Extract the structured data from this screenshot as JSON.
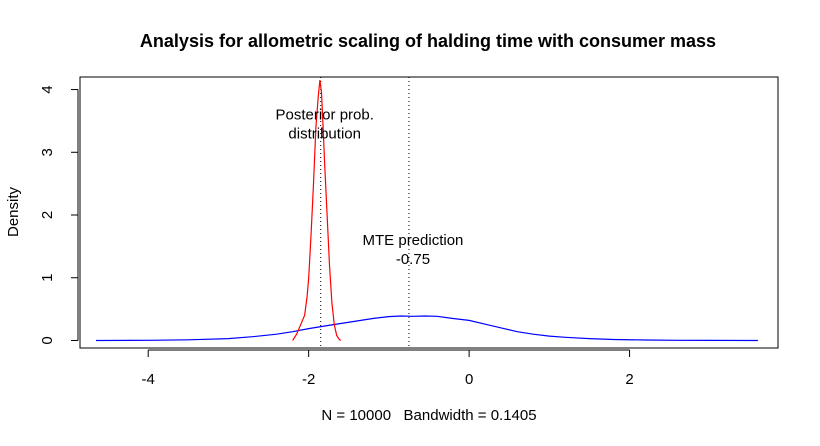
{
  "chart_data": {
    "type": "line",
    "title": "Analysis for allometric scaling of halding time with consumer mass",
    "xlabel": "N = 10000   Bandwidth = 0.1405",
    "ylabel": "Density",
    "xlim": [
      -4.85,
      3.85
    ],
    "ylim": [
      -0.12,
      4.2
    ],
    "x_ticks": [
      -4,
      -2,
      0,
      2
    ],
    "y_ticks": [
      0,
      1,
      2,
      3,
      4
    ],
    "x_tick_labels": [
      "-4",
      "-2",
      "0",
      "2"
    ],
    "y_tick_labels": [
      "0",
      "1",
      "2",
      "3",
      "4"
    ],
    "grid": false,
    "legend": "none",
    "series": [
      {
        "color": "#0000ff",
        "x": [
          -4.65,
          -4.0,
          -3.5,
          -3.0,
          -2.7,
          -2.4,
          -2.2,
          -2.0,
          -1.8,
          -1.6,
          -1.4,
          -1.2,
          -1.0,
          -0.85,
          -0.7,
          -0.55,
          -0.4,
          -0.2,
          0.0,
          0.2,
          0.4,
          0.6,
          0.8,
          1.0,
          1.2,
          1.5,
          1.8,
          2.2,
          2.6,
          3.0,
          3.6
        ],
        "values": [
          0.0,
          0.003,
          0.01,
          0.03,
          0.06,
          0.1,
          0.14,
          0.19,
          0.23,
          0.27,
          0.31,
          0.35,
          0.38,
          0.39,
          0.385,
          0.39,
          0.385,
          0.35,
          0.32,
          0.26,
          0.2,
          0.14,
          0.1,
          0.07,
          0.05,
          0.03,
          0.015,
          0.007,
          0.003,
          0.001,
          0.0
        ]
      },
      {
        "color": "#ff0000",
        "x": [
          -2.2,
          -2.15,
          -2.1,
          -2.05,
          -2.02,
          -2.0,
          -1.97,
          -1.94,
          -1.91,
          -1.88,
          -1.86,
          -1.84,
          -1.82,
          -1.8,
          -1.77,
          -1.74,
          -1.71,
          -1.68,
          -1.65,
          -1.62,
          -1.6
        ],
        "values": [
          0.0,
          0.1,
          0.25,
          0.4,
          0.7,
          1.0,
          1.7,
          2.5,
          3.4,
          3.9,
          4.15,
          3.95,
          3.4,
          2.8,
          2.0,
          1.2,
          0.6,
          0.25,
          0.08,
          0.02,
          0.0
        ]
      }
    ],
    "reference_lines": [
      -1.85,
      -0.75
    ],
    "annotations": [
      {
        "text": "Posterior prob.",
        "x": -1.8,
        "y": 3.6
      },
      {
        "text": "distribution",
        "x": -1.8,
        "y": 3.3
      },
      {
        "text": "MTE prediction",
        "x": -0.7,
        "y": 1.6
      },
      {
        "text": "-0.75",
        "x": -0.7,
        "y": 1.3
      }
    ]
  }
}
